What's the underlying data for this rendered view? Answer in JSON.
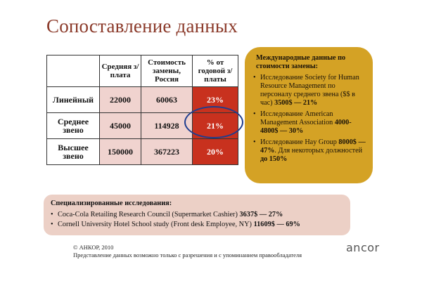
{
  "title": "Сопоставление данных",
  "table": {
    "headers": [
      "",
      "Средняя з/плата",
      "Стоимость замены, Россия",
      "% от годовой з/платы"
    ],
    "rows": [
      {
        "label": "Линейный",
        "salary": "22000",
        "cost": "60063",
        "percent": "23%"
      },
      {
        "label": "Среднее звено",
        "salary": "45000",
        "cost": "114928",
        "percent": "21%"
      },
      {
        "label": "Высшее звено",
        "salary": "150000",
        "cost": "367223",
        "percent": "20%"
      }
    ]
  },
  "intl_panel": {
    "heading": "Международные данные по стоимости замены:",
    "items": [
      {
        "text": "Исследование Society for Human Resource Management по персоналу среднего звена ($$ в час) ",
        "bold": "3500$ — 21%"
      },
      {
        "text": "Исследование American Management Association ",
        "bold": "4000-4800$ — 30%"
      },
      {
        "text": "Исследование Hay Group ",
        "bold": "8000$ — 47%",
        "text2": ". Для некоторых должностей ",
        "bold2": "до 150%"
      }
    ]
  },
  "special": {
    "heading": "Специализированные исследования:",
    "items": [
      {
        "text": "Coca-Cola Retailing Research Council (Supermarket Cashier) ",
        "bold": "3637$ — 27%"
      },
      {
        "text": "Cornell University Hotel School study (Front desk Employee, NY) ",
        "bold": "11609$ — 69%"
      }
    ]
  },
  "footer": {
    "copyright": "© АНКОР, 2010",
    "notice": "Представление данных возможно только с разрешения и с упоминанием правообладателя"
  },
  "logo": "ancor",
  "colors": {
    "title": "#8b3a2a",
    "highlight_red": "#c8311e",
    "cell_pink": "#f0d3cf",
    "panel_gold": "#d4a225",
    "special_pink": "#ecd0c6",
    "circle_blue": "#1f3d8f"
  }
}
